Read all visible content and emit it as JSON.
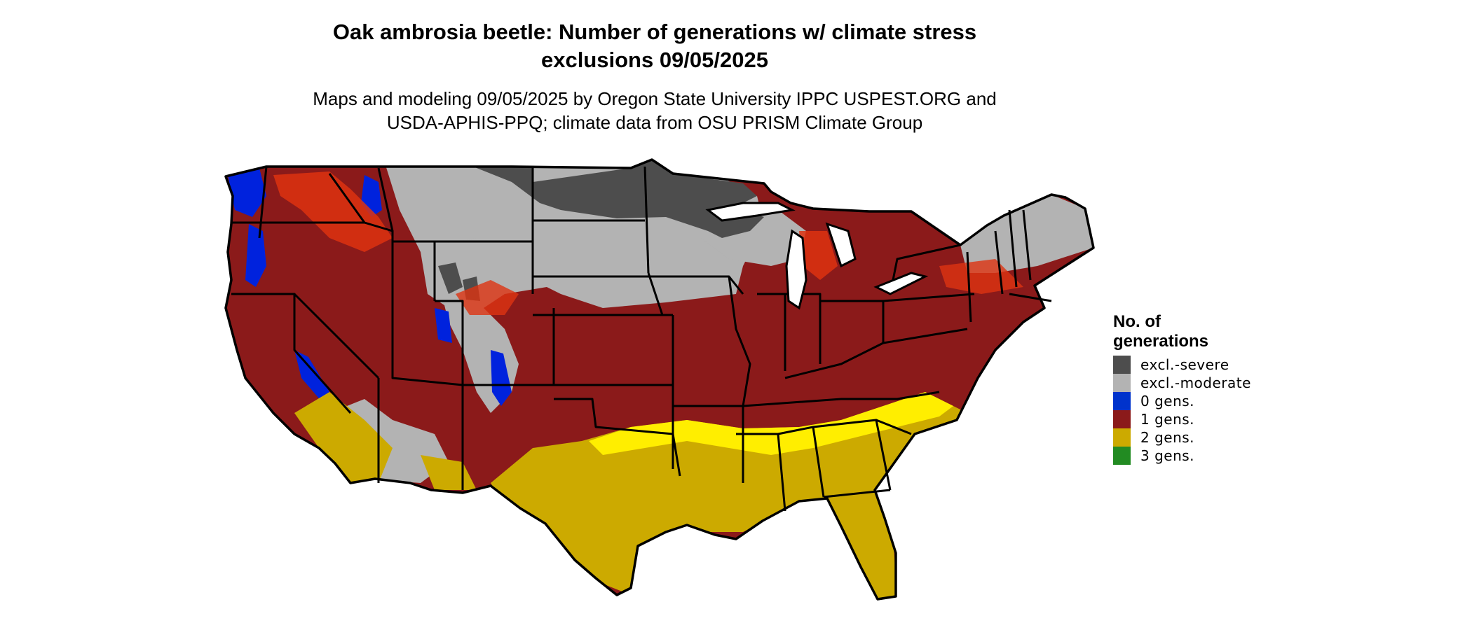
{
  "title_line1": "Oak ambrosia beetle: Number of generations w/ climate stress",
  "title_line2": "exclusions 09/05/2025",
  "subtitle_line1": "Maps and modeling 09/05/2025 by Oregon State University IPPC USPEST.ORG and",
  "subtitle_line2": "USDA-APHIS-PPQ; climate data from OSU PRISM Climate Group",
  "legend": {
    "title": "No. of generations",
    "items": [
      {
        "label": "excl.-severe",
        "color": "#4d4d4d"
      },
      {
        "label": "excl.-moderate",
        "color": "#b3b3b3"
      },
      {
        "label": "0 gens.",
        "color": "#0033cc"
      },
      {
        "label": "1 gens.",
        "color": "#8b1a1a"
      },
      {
        "label": "2 gens.",
        "color": "#ccaa00"
      },
      {
        "label": "3 gens.",
        "color": "#228b22"
      }
    ]
  },
  "map": {
    "region": "contiguous-united-states",
    "colors": {
      "excl_severe": "#4d4d4d",
      "excl_moderate": "#b3b3b3",
      "gens_0": "#0022dd",
      "gens_1": "#8b1a1a",
      "gens_1_light": "#dd3311",
      "gens_2": "#ccaa00",
      "gens_2_bright": "#ffee00",
      "gens_3": "#33cc33",
      "border": "#000000"
    }
  }
}
